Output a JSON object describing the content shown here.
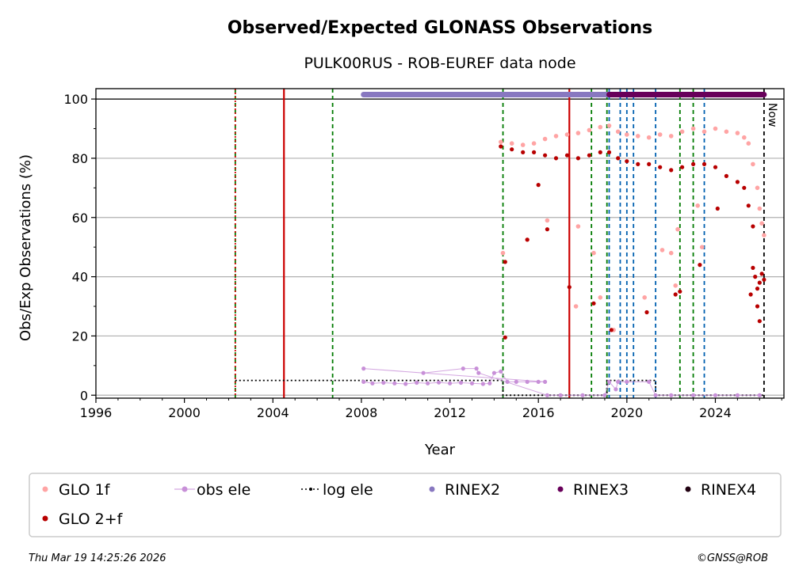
{
  "chart_data": {
    "type": "scatter",
    "title": "Observed/Expected GLONASS Observations",
    "subtitle": "PULK00RUS - ROB-EUREF data node",
    "xlabel": "Year",
    "ylabel": "Obs/Exp Observations (%)",
    "xlim": [
      1996,
      2027.1
    ],
    "ylim": [
      -1,
      103.5
    ],
    "xticks": [
      1996,
      2000,
      2004,
      2008,
      2012,
      2016,
      2020,
      2024
    ],
    "yticks": [
      0,
      20,
      40,
      60,
      80,
      100
    ],
    "now_label": "Now",
    "now_x": 2026.2,
    "colors": {
      "glo1f": "#ffa4a4",
      "glo2f": "#b80000",
      "obs_ele": "#c890d8",
      "log_ele": "#000000",
      "rinex2": "#8878c0",
      "rinex3": "#68005a",
      "rinex4": "#200010",
      "event_red": "#cc0000",
      "event_green": "#007a00",
      "event_blue": "#0060b0"
    },
    "event_lines": [
      {
        "x": 2002.3,
        "color": "green",
        "style": "dashed"
      },
      {
        "x": 2002.3,
        "color": "red",
        "style": "dotted"
      },
      {
        "x": 2004.5,
        "color": "red",
        "style": "solid"
      },
      {
        "x": 2006.7,
        "color": "green",
        "style": "dashed"
      },
      {
        "x": 2014.4,
        "color": "green",
        "style": "dashed"
      },
      {
        "x": 2017.4,
        "color": "red",
        "style": "solid"
      },
      {
        "x": 2018.4,
        "color": "green",
        "style": "dashed"
      },
      {
        "x": 2019.1,
        "color": "green",
        "style": "dashed"
      },
      {
        "x": 2019.2,
        "color": "blue",
        "style": "dashed"
      },
      {
        "x": 2019.7,
        "color": "blue",
        "style": "dashed"
      },
      {
        "x": 2020.0,
        "color": "blue",
        "style": "dashed"
      },
      {
        "x": 2020.3,
        "color": "blue",
        "style": "dashed"
      },
      {
        "x": 2021.3,
        "color": "blue",
        "style": "dashed"
      },
      {
        "x": 2022.4,
        "color": "green",
        "style": "dashed"
      },
      {
        "x": 2023.0,
        "color": "green",
        "style": "dashed"
      },
      {
        "x": 2023.5,
        "color": "blue",
        "style": "dashed"
      }
    ],
    "log_ele": {
      "x": [
        2002.3,
        2014.4,
        2014.4,
        2019.1,
        2019.1,
        2021.3,
        2021.3,
        2026.2
      ],
      "y": [
        5,
        5,
        0,
        0,
        5,
        5,
        0,
        0
      ]
    },
    "rinex_bars": [
      {
        "name": "RINEX2",
        "x_start": 2008.1,
        "x_end": 2019.2,
        "y": 101.5
      },
      {
        "name": "RINEX3",
        "x_start": 2019.2,
        "x_end": 2026.2,
        "y": 101.5
      }
    ],
    "series": [
      {
        "name": "GLO 1f",
        "points": [
          [
            2014.3,
            85.5
          ],
          [
            2014.8,
            85
          ],
          [
            2015.3,
            84.5
          ],
          [
            2015.8,
            85
          ],
          [
            2016.3,
            86.5
          ],
          [
            2016.8,
            87.5
          ],
          [
            2017.3,
            88
          ],
          [
            2017.8,
            88.5
          ],
          [
            2018.3,
            89.5
          ],
          [
            2018.8,
            90.5
          ],
          [
            2019.2,
            91
          ],
          [
            2019.6,
            89
          ],
          [
            2020.0,
            88
          ],
          [
            2020.5,
            87.5
          ],
          [
            2021.0,
            87
          ],
          [
            2021.5,
            88
          ],
          [
            2022.0,
            87.5
          ],
          [
            2022.5,
            89
          ],
          [
            2023.0,
            90
          ],
          [
            2023.5,
            89
          ],
          [
            2024.0,
            90
          ],
          [
            2024.5,
            89
          ],
          [
            2025.0,
            88.5
          ],
          [
            2025.3,
            87
          ],
          [
            2025.5,
            85
          ],
          [
            2025.7,
            78
          ],
          [
            2025.9,
            70
          ],
          [
            2026.0,
            63
          ],
          [
            2026.1,
            58
          ],
          [
            2026.2,
            54
          ],
          [
            2015.5,
            52.5
          ],
          [
            2016.4,
            59
          ],
          [
            2017.8,
            57
          ],
          [
            2018.5,
            48
          ],
          [
            2018.8,
            33
          ],
          [
            2019.4,
            22
          ],
          [
            2020.8,
            33
          ],
          [
            2021.6,
            49
          ],
          [
            2022.0,
            48
          ],
          [
            2022.2,
            37
          ],
          [
            2022.3,
            56
          ],
          [
            2023.2,
            64
          ],
          [
            2023.4,
            50
          ],
          [
            2017.7,
            30
          ],
          [
            2014.4,
            48
          ]
        ]
      },
      {
        "name": "GLO 2+f",
        "points": [
          [
            2014.3,
            84
          ],
          [
            2014.8,
            83
          ],
          [
            2015.3,
            82
          ],
          [
            2015.8,
            82
          ],
          [
            2016.3,
            81
          ],
          [
            2016.8,
            80
          ],
          [
            2017.3,
            81
          ],
          [
            2017.8,
            80
          ],
          [
            2018.3,
            81
          ],
          [
            2018.8,
            82
          ],
          [
            2019.2,
            82
          ],
          [
            2019.6,
            80
          ],
          [
            2020.0,
            79
          ],
          [
            2020.5,
            78
          ],
          [
            2021.0,
            78
          ],
          [
            2021.5,
            77
          ],
          [
            2022.0,
            76
          ],
          [
            2022.5,
            77
          ],
          [
            2023.0,
            78
          ],
          [
            2023.5,
            78
          ],
          [
            2024.0,
            77
          ],
          [
            2024.5,
            74
          ],
          [
            2025.0,
            72
          ],
          [
            2025.3,
            70
          ],
          [
            2025.5,
            64
          ],
          [
            2025.7,
            57
          ],
          [
            2025.8,
            40
          ],
          [
            2025.9,
            36
          ],
          [
            2026.0,
            38
          ],
          [
            2026.1,
            41
          ],
          [
            2026.2,
            39
          ],
          [
            2025.7,
            43
          ],
          [
            2025.9,
            30
          ],
          [
            2026.0,
            25
          ],
          [
            2025.6,
            34
          ],
          [
            2015.5,
            52.5
          ],
          [
            2014.5,
            45
          ],
          [
            2014.5,
            19.5
          ],
          [
            2017.4,
            36.5
          ],
          [
            2018.5,
            31
          ],
          [
            2019.3,
            22
          ],
          [
            2020.9,
            28
          ],
          [
            2022.2,
            34
          ],
          [
            2022.4,
            35
          ],
          [
            2016.4,
            56
          ],
          [
            2016.0,
            71
          ],
          [
            2023.3,
            44
          ],
          [
            2024.1,
            63
          ]
        ]
      },
      {
        "name": "obs ele",
        "points": [
          [
            2008.1,
            4.5
          ],
          [
            2008.5,
            4
          ],
          [
            2009.0,
            4.2
          ],
          [
            2009.5,
            4
          ],
          [
            2010.0,
            3.8
          ],
          [
            2010.5,
            4.2
          ],
          [
            2011.0,
            4
          ],
          [
            2011.5,
            4.3
          ],
          [
            2012.0,
            4
          ],
          [
            2012.5,
            4.2
          ],
          [
            2013.0,
            4
          ],
          [
            2013.5,
            3.8
          ],
          [
            2013.8,
            4
          ],
          [
            2014.0,
            7.5
          ],
          [
            2014.3,
            8
          ],
          [
            2014.6,
            4.5
          ],
          [
            2015.0,
            4.5
          ],
          [
            2015.5,
            4.5
          ],
          [
            2016.0,
            4.5
          ],
          [
            2016.3,
            4.5
          ],
          [
            2008.1,
            9
          ],
          [
            2010.8,
            7.5
          ],
          [
            2012.6,
            9
          ],
          [
            2013.2,
            9
          ],
          [
            2013.3,
            7.5
          ],
          [
            2016.4,
            0
          ],
          [
            2017.0,
            0
          ],
          [
            2018.0,
            0
          ],
          [
            2019.0,
            0
          ],
          [
            2019.2,
            4.5
          ],
          [
            2019.5,
            2
          ],
          [
            2019.6,
            4.5
          ],
          [
            2020.0,
            4.5
          ],
          [
            2021.0,
            4.5
          ],
          [
            2021.3,
            0
          ],
          [
            2022.0,
            0
          ],
          [
            2023.0,
            0
          ],
          [
            2024.0,
            0
          ],
          [
            2025.0,
            0
          ],
          [
            2026.0,
            0
          ]
        ]
      }
    ],
    "legend": {
      "placement": "bottom",
      "entries": [
        "GLO 1f",
        "obs ele",
        "log ele",
        "RINEX2",
        "RINEX3",
        "RINEX4",
        "GLO 2+f"
      ]
    }
  },
  "footer": {
    "timestamp": "Thu Mar 19 14:25:26 2026",
    "credit": "©GNSS@ROB"
  }
}
